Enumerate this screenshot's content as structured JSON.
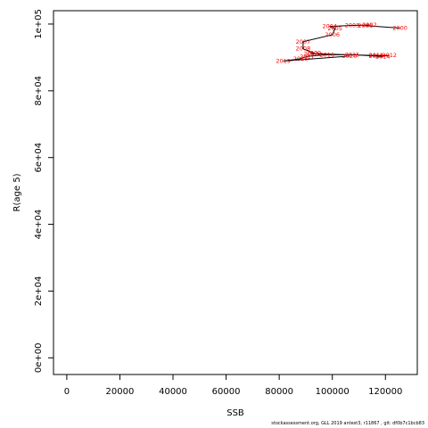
{
  "chart_data": {
    "type": "line",
    "xlabel": "SSB",
    "ylabel": "R(age 5)",
    "xlim": [
      -5000,
      132000
    ],
    "ylim": [
      -5000,
      104000
    ],
    "x_ticks": [
      0,
      20000,
      40000,
      60000,
      80000,
      100000,
      120000
    ],
    "x_tick_labels": [
      "0",
      "20000",
      "40000",
      "60000",
      "80000",
      "100000",
      "120000"
    ],
    "y_ticks": [
      0,
      20000,
      40000,
      60000,
      80000,
      100000
    ],
    "y_tick_labels": [
      "0e+00",
      "2e+04",
      "4e+04",
      "6e+04",
      "8e+04",
      "1e+05"
    ],
    "line_color": "#000000",
    "label_color": "#ff0000",
    "points": [
      {
        "year": "2000",
        "x": 125500,
        "y": 98800
      },
      {
        "year": "2001",
        "x": 112500,
        "y": 99500
      },
      {
        "year": "2002",
        "x": 114000,
        "y": 99700
      },
      {
        "year": "2003",
        "x": 107500,
        "y": 99600
      },
      {
        "year": "2004",
        "x": 99000,
        "y": 99300
      },
      {
        "year": "2005",
        "x": 101000,
        "y": 98600
      },
      {
        "year": "2006",
        "x": 100000,
        "y": 96800
      },
      {
        "year": "2007",
        "x": 89000,
        "y": 94700
      },
      {
        "year": "2008",
        "x": 89000,
        "y": 92600
      },
      {
        "year": "2009",
        "x": 93000,
        "y": 91300
      },
      {
        "year": "2010",
        "x": 92000,
        "y": 91100
      },
      {
        "year": "2011",
        "x": 116500,
        "y": 90600
      },
      {
        "year": "2012",
        "x": 121500,
        "y": 90600
      },
      {
        "year": "2013",
        "x": 116500,
        "y": 90400
      },
      {
        "year": "2014",
        "x": 119000,
        "y": 90300
      },
      {
        "year": "2015",
        "x": 107500,
        "y": 90800
      },
      {
        "year": "2016",
        "x": 98000,
        "y": 90800
      },
      {
        "year": "2017",
        "x": 90500,
        "y": 90300
      },
      {
        "year": "2018",
        "x": 88000,
        "y": 89600
      },
      {
        "year": "2019",
        "x": 81500,
        "y": 88900
      },
      {
        "year": "2020",
        "x": 106500,
        "y": 90400
      }
    ]
  },
  "footer": "stockassessment.org, GLL 2019 antest3, r11867 , git: df0b7c1bcb83"
}
